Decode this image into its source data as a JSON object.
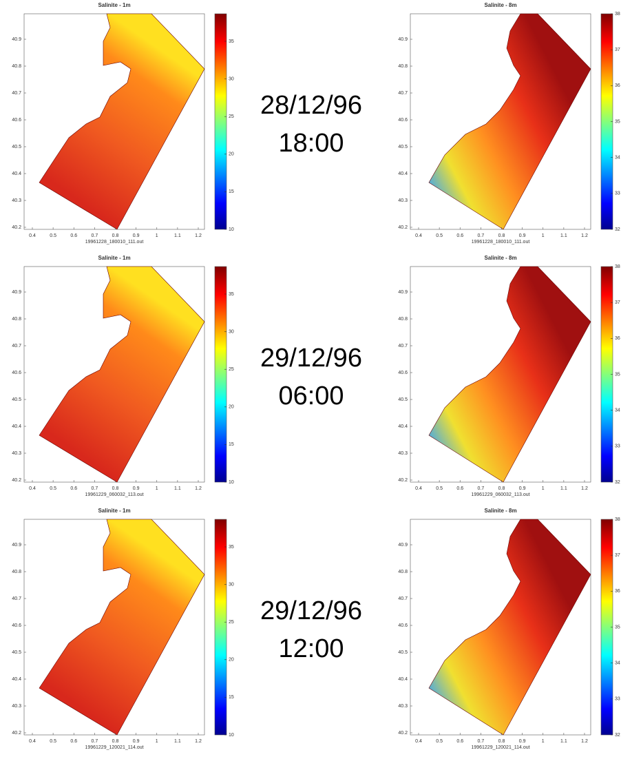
{
  "timestamps": [
    {
      "date": "28/12/96",
      "time": "18:00"
    },
    {
      "date": "29/12/96",
      "time": "06:00"
    },
    {
      "date": "29/12/96",
      "time": "12:00"
    }
  ],
  "rows": [
    {
      "left": {
        "title": "Salinite - 1m",
        "file": "19961228_180010_111.out",
        "xticks": [
          0.4,
          0.5,
          0.6,
          0.7,
          0.8,
          0.9,
          1,
          1.1,
          1.2
        ],
        "yticks": [
          40.2,
          40.3,
          40.4,
          40.5,
          40.6,
          40.7,
          40.8,
          40.9
        ],
        "colorbar_ticks": [
          10,
          15,
          20,
          25,
          30,
          35
        ]
      },
      "right": {
        "title": "Salinite - 8m",
        "file": "19961228_180010_111.out",
        "xticks": [
          0.4,
          0.5,
          0.6,
          0.7,
          0.8,
          0.9,
          1,
          1.1,
          1.2
        ],
        "yticks": [
          40.2,
          40.3,
          40.4,
          40.5,
          40.6,
          40.7,
          40.8,
          40.9
        ],
        "colorbar_ticks": [
          32,
          33,
          34,
          35,
          36,
          37,
          38
        ]
      }
    },
    {
      "left": {
        "title": "Salinite - 1m",
        "file": "19961229_060032_113.out",
        "xticks": [
          0.4,
          0.5,
          0.6,
          0.7,
          0.8,
          0.9,
          1,
          1.1,
          1.2
        ],
        "yticks": [
          40.2,
          40.3,
          40.4,
          40.5,
          40.6,
          40.7,
          40.8,
          40.9
        ],
        "colorbar_ticks": [
          10,
          15,
          20,
          25,
          30,
          35
        ]
      },
      "right": {
        "title": "Salinite - 8m",
        "file": "19961229_060032_113.out",
        "xticks": [
          0.4,
          0.5,
          0.6,
          0.7,
          0.8,
          0.9,
          1,
          1.1,
          1.2
        ],
        "yticks": [
          40.2,
          40.3,
          40.4,
          40.5,
          40.6,
          40.7,
          40.8,
          40.9
        ],
        "colorbar_ticks": [
          32,
          33,
          34,
          35,
          36,
          37,
          38
        ]
      }
    },
    {
      "left": {
        "title": "Salinite - 1m",
        "file": "19961229_120021_114.out",
        "xticks": [
          0.4,
          0.5,
          0.6,
          0.7,
          0.8,
          0.9,
          1,
          1.1,
          1.2
        ],
        "yticks": [
          40.2,
          40.3,
          40.4,
          40.5,
          40.6,
          40.7,
          40.8,
          40.9
        ],
        "colorbar_ticks": [
          10,
          15,
          20,
          25,
          30,
          35
        ]
      },
      "right": {
        "title": "Salinite - 8m",
        "file": "19961229_120021_114.out",
        "xticks": [
          0.4,
          0.5,
          0.6,
          0.7,
          0.8,
          0.9,
          1,
          1.1,
          1.2
        ],
        "yticks": [
          40.2,
          40.3,
          40.4,
          40.5,
          40.6,
          40.7,
          40.8,
          40.9
        ],
        "colorbar_ticks": [
          32,
          33,
          34,
          35,
          36,
          37,
          38
        ]
      }
    }
  ]
}
